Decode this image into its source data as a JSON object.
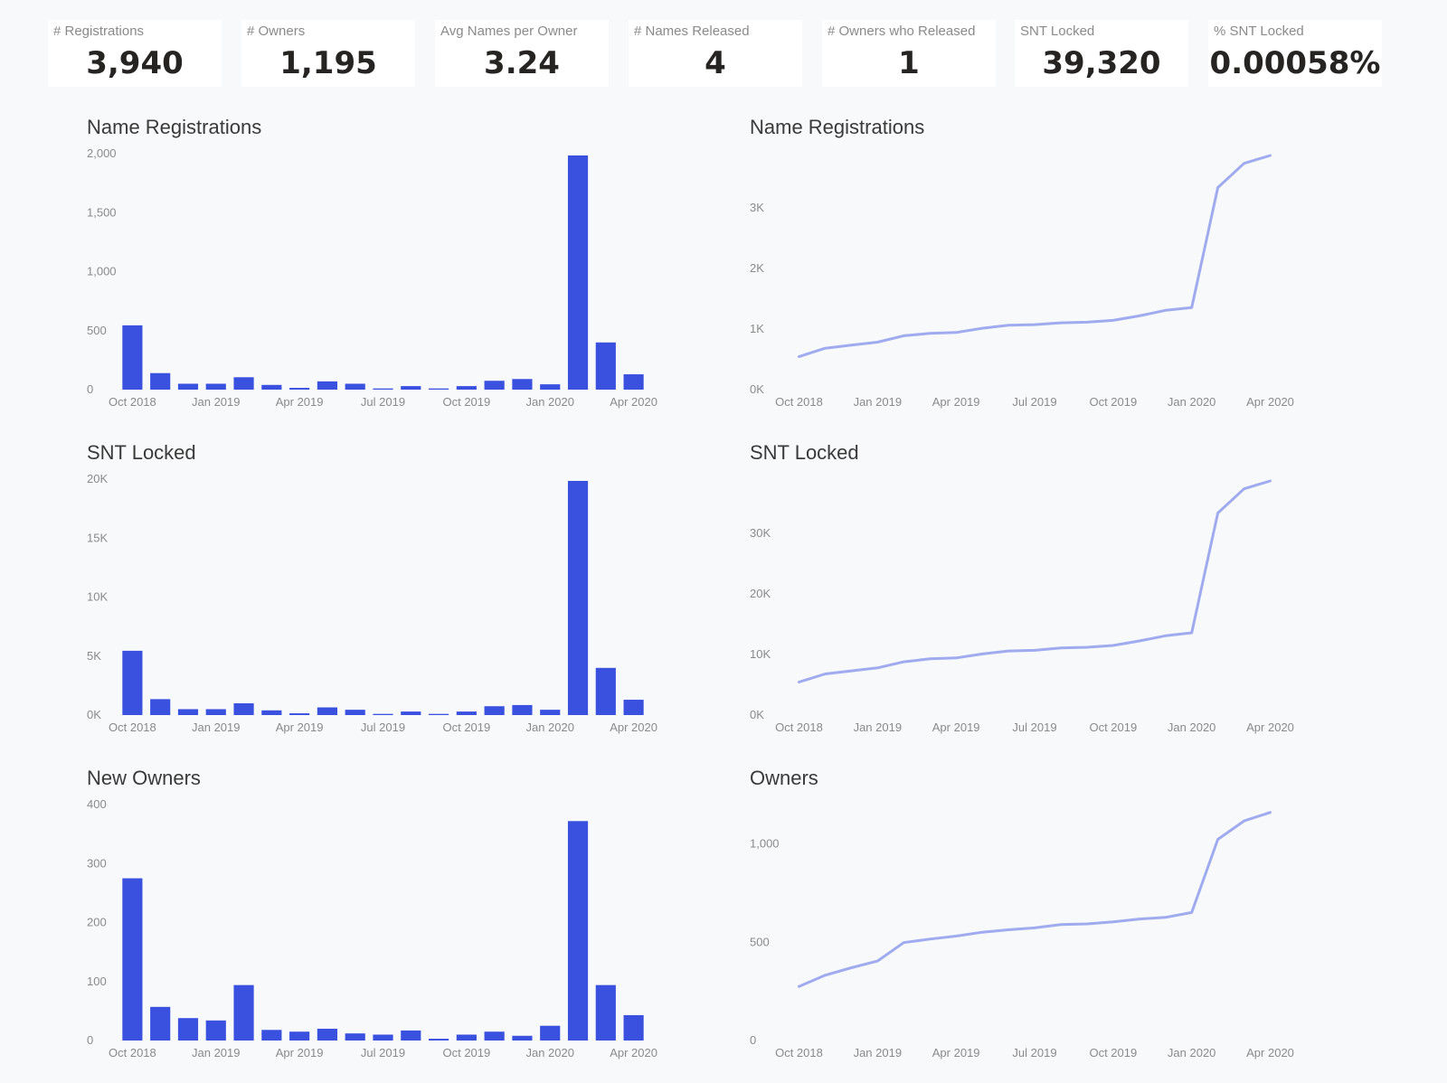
{
  "kpis": [
    {
      "label": "# Registrations",
      "value": "3,940"
    },
    {
      "label": "# Owners",
      "value": "1,195"
    },
    {
      "label": "Avg Names per Owner",
      "value": "3.24"
    },
    {
      "label": "# Names Released",
      "value": "4"
    },
    {
      "label": "# Owners who Released",
      "value": "1"
    },
    {
      "label": "SNT Locked",
      "value": "39,320"
    },
    {
      "label": "% SNT Locked",
      "value": "0.00058%"
    }
  ],
  "colors": {
    "bar": "#3a51e0",
    "line": "#9fabee",
    "tick": "#8a8a8a"
  },
  "chart_data": [
    {
      "type": "bar",
      "title": "Name Registrations",
      "categories": [
        "Oct 2018",
        "Nov 2018",
        "Dec 2018",
        "Jan 2019",
        "Feb 2019",
        "Mar 2019",
        "Apr 2019",
        "May 2019",
        "Jun 2019",
        "Jul 2019",
        "Aug 2019",
        "Sep 2019",
        "Oct 2019",
        "Nov 2019",
        "Dec 2019",
        "Jan 2020",
        "Feb 2020",
        "Mar 2020",
        "Apr 2020"
      ],
      "values": [
        545,
        140,
        50,
        50,
        105,
        40,
        15,
        70,
        50,
        10,
        30,
        10,
        30,
        75,
        90,
        45,
        1985,
        400,
        130
      ],
      "ylim": [
        0,
        2000
      ],
      "yticks": [
        0,
        500,
        1000,
        1500,
        2000
      ],
      "ytick_labels": [
        "0",
        "500",
        "1,000",
        "1,500",
        "2,000"
      ],
      "xtick_labels": [
        "Oct 2018",
        "Jan 2019",
        "Apr 2019",
        "Jul 2019",
        "Oct 2019",
        "Jan 2020",
        "Apr 2020"
      ],
      "xtick_index": [
        0,
        3,
        6,
        9,
        12,
        15,
        18
      ]
    },
    {
      "type": "line",
      "title": "Name Registrations",
      "x": [
        "Oct 2018",
        "Nov 2018",
        "Dec 2018",
        "Jan 2019",
        "Feb 2019",
        "Mar 2019",
        "Apr 2019",
        "May 2019",
        "Jun 2019",
        "Jul 2019",
        "Aug 2019",
        "Sep 2019",
        "Oct 2019",
        "Nov 2019",
        "Dec 2019",
        "Jan 2020",
        "Feb 2020",
        "Mar 2020",
        "Apr 2020"
      ],
      "values": [
        545,
        685,
        735,
        785,
        890,
        930,
        945,
        1015,
        1065,
        1075,
        1105,
        1115,
        1145,
        1220,
        1310,
        1355,
        3340,
        3740,
        3870
      ],
      "ylim": [
        0,
        3900
      ],
      "yticks": [
        0,
        1000,
        2000,
        3000
      ],
      "ytick_labels": [
        "0K",
        "1K",
        "2K",
        "3K"
      ],
      "xtick_labels": [
        "Oct 2018",
        "Jan 2019",
        "Apr 2019",
        "Jul 2019",
        "Oct 2019",
        "Jan 2020",
        "Apr 2020"
      ],
      "xtick_index": [
        0,
        3,
        6,
        9,
        12,
        15,
        18
      ]
    },
    {
      "type": "bar",
      "title": "SNT Locked",
      "categories": [
        "Oct 2018",
        "Nov 2018",
        "Dec 2018",
        "Jan 2019",
        "Feb 2019",
        "Mar 2019",
        "Apr 2019",
        "May 2019",
        "Jun 2019",
        "Jul 2019",
        "Aug 2019",
        "Sep 2019",
        "Oct 2019",
        "Nov 2019",
        "Dec 2019",
        "Jan 2020",
        "Feb 2020",
        "Mar 2020",
        "Apr 2020"
      ],
      "values": [
        5450,
        1350,
        500,
        500,
        1000,
        400,
        150,
        650,
        450,
        100,
        300,
        100,
        300,
        750,
        850,
        450,
        19850,
        4000,
        1300
      ],
      "ylim": [
        0,
        20000
      ],
      "yticks": [
        0,
        5000,
        10000,
        15000,
        20000
      ],
      "ytick_labels": [
        "0K",
        "5K",
        "10K",
        "15K",
        "20K"
      ],
      "xtick_labels": [
        "Oct 2018",
        "Jan 2019",
        "Apr 2019",
        "Jul 2019",
        "Oct 2019",
        "Jan 2020",
        "Apr 2020"
      ],
      "xtick_index": [
        0,
        3,
        6,
        9,
        12,
        15,
        18
      ]
    },
    {
      "type": "line",
      "title": "SNT Locked",
      "x": [
        "Oct 2018",
        "Nov 2018",
        "Dec 2018",
        "Jan 2019",
        "Feb 2019",
        "Mar 2019",
        "Apr 2019",
        "May 2019",
        "Jun 2019",
        "Jul 2019",
        "Aug 2019",
        "Sep 2019",
        "Oct 2019",
        "Nov 2019",
        "Dec 2019",
        "Jan 2020",
        "Feb 2020",
        "Mar 2020",
        "Apr 2020"
      ],
      "values": [
        5450,
        6800,
        7300,
        7800,
        8800,
        9300,
        9450,
        10100,
        10600,
        10700,
        11100,
        11200,
        11500,
        12250,
        13100,
        13600,
        33400,
        37400,
        38700
      ],
      "ylim": [
        0,
        39000
      ],
      "yticks": [
        0,
        10000,
        20000,
        30000
      ],
      "ytick_labels": [
        "0K",
        "10K",
        "20K",
        "30K"
      ],
      "xtick_labels": [
        "Oct 2018",
        "Jan 2019",
        "Apr 2019",
        "Jul 2019",
        "Oct 2019",
        "Jan 2020",
        "Apr 2020"
      ],
      "xtick_index": [
        0,
        3,
        6,
        9,
        12,
        15,
        18
      ]
    },
    {
      "type": "bar",
      "title": "New Owners",
      "categories": [
        "Oct 2018",
        "Nov 2018",
        "Dec 2018",
        "Jan 2019",
        "Feb 2019",
        "Mar 2019",
        "Apr 2019",
        "May 2019",
        "Jun 2019",
        "Jul 2019",
        "Aug 2019",
        "Sep 2019",
        "Oct 2019",
        "Nov 2019",
        "Dec 2019",
        "Jan 2020",
        "Feb 2020",
        "Mar 2020",
        "Apr 2020"
      ],
      "values": [
        275,
        57,
        38,
        34,
        94,
        18,
        15,
        20,
        12,
        10,
        17,
        3,
        10,
        15,
        8,
        25,
        372,
        94,
        43
      ],
      "ylim": [
        0,
        400
      ],
      "yticks": [
        0,
        100,
        200,
        300,
        400
      ],
      "ytick_labels": [
        "0",
        "100",
        "200",
        "300",
        "400"
      ],
      "xtick_labels": [
        "Oct 2018",
        "Jan 2019",
        "Apr 2019",
        "Jul 2019",
        "Oct 2019",
        "Jan 2020",
        "Apr 2020"
      ],
      "xtick_index": [
        0,
        3,
        6,
        9,
        12,
        15,
        18
      ]
    },
    {
      "type": "line",
      "title": "Owners",
      "x": [
        "Oct 2018",
        "Nov 2018",
        "Dec 2018",
        "Jan 2019",
        "Feb 2019",
        "Mar 2019",
        "Apr 2019",
        "May 2019",
        "Jun 2019",
        "Jul 2019",
        "Aug 2019",
        "Sep 2019",
        "Oct 2019",
        "Nov 2019",
        "Dec 2019",
        "Jan 2020",
        "Feb 2020",
        "Mar 2020",
        "Apr 2020"
      ],
      "values": [
        275,
        332,
        370,
        404,
        498,
        516,
        531,
        551,
        563,
        573,
        590,
        593,
        603,
        618,
        626,
        651,
        1023,
        1117,
        1160
      ],
      "ylim": [
        0,
        1200
      ],
      "yticks": [
        0,
        500,
        1000
      ],
      "ytick_labels": [
        "0",
        "500",
        "1,000"
      ],
      "xtick_labels": [
        "Oct 2018",
        "Jan 2019",
        "Apr 2019",
        "Jul 2019",
        "Oct 2019",
        "Jan 2020",
        "Apr 2020"
      ],
      "xtick_index": [
        0,
        3,
        6,
        9,
        12,
        15,
        18
      ]
    }
  ]
}
